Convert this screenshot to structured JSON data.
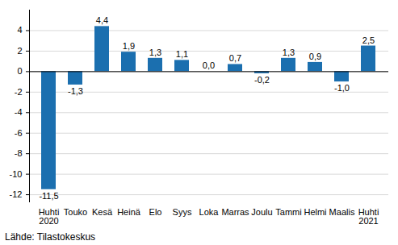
{
  "chart_data": {
    "type": "bar",
    "caption": "Lähde: Tilastokeskus",
    "categories": [
      "Huhti\n2020",
      "Touko",
      "Kesä",
      "Heinä",
      "Elo",
      "Syys",
      "Loka",
      "Marras",
      "Joulu",
      "Tammi",
      "Helmi",
      "Maalis",
      "Huhti\n2021"
    ],
    "values": [
      -11.5,
      -1.3,
      4.4,
      1.9,
      1.3,
      1.1,
      0.0,
      0.7,
      -0.2,
      1.3,
      0.9,
      -1.0,
      2.5
    ],
    "value_labels": [
      "-11,5",
      "-1,3",
      "4,4",
      "1,9",
      "1,3",
      "1,1",
      "0,0",
      "0,7",
      "-0,2",
      "1,3",
      "0,9",
      "-1,0",
      "2,5"
    ],
    "color": "#1b6faf",
    "ylim": [
      -12.7,
      6
    ],
    "yticks": [
      -12,
      -10,
      -8,
      -6,
      -4,
      -2,
      0,
      2,
      4
    ],
    "grid": true,
    "data_labels": true
  }
}
